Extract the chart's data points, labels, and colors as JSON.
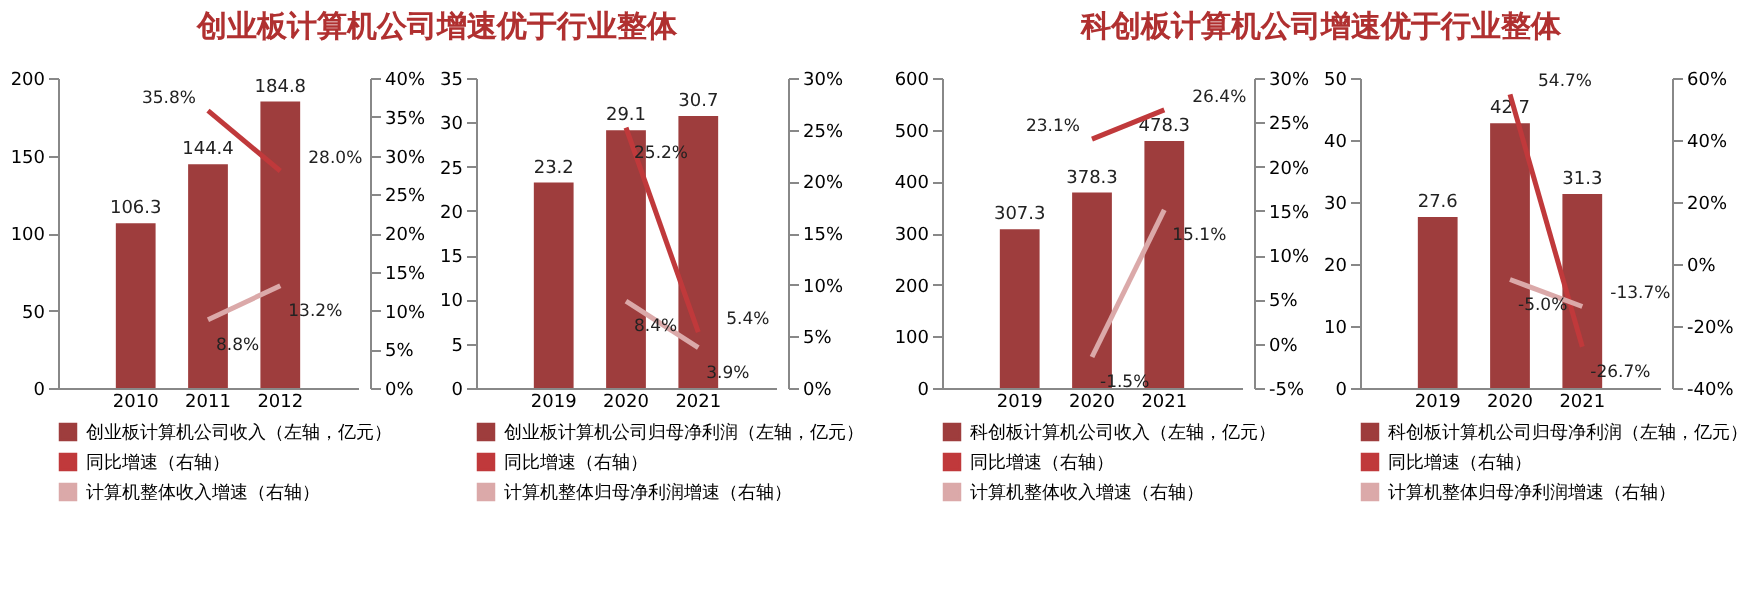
{
  "chart_data": [
    {
      "type": "bar",
      "title": "创业板计算机公司增速优于行业整体",
      "categories": [
        "2010",
        "2011",
        "2012"
      ],
      "ylim": [
        0,
        200
      ],
      "yticks": [
        0,
        50,
        100,
        150,
        200
      ],
      "y2lim": [
        0,
        40
      ],
      "y2ticks": [
        {
          "value": 0,
          "label": "0%"
        },
        {
          "value": 5,
          "label": "5%"
        },
        {
          "value": 10,
          "label": "10%"
        },
        {
          "value": 15,
          "label": "15%"
        },
        {
          "value": 20,
          "label": "20%"
        },
        {
          "value": 25,
          "label": "25%"
        },
        {
          "value": 30,
          "label": "30%"
        },
        {
          "value": 35,
          "label": "35%"
        },
        {
          "value": 40,
          "label": "40%"
        }
      ],
      "legend": "bottom",
      "series": [
        {
          "name": "创业板计算机公司收入（左轴，亿元）",
          "color": "#9e3d3d",
          "values": [
            106.3,
            144.4,
            184.8
          ],
          "value_labels": [
            "106.3",
            "144.4",
            "184.8"
          ]
        },
        {
          "name": "同比增速（右轴）",
          "type": "line",
          "axis": "y2",
          "color": "#c0393b",
          "values": [
            null,
            35.8,
            28.0
          ],
          "value_labels": [
            null,
            "35.8%",
            "28.0%"
          ]
        },
        {
          "name": "计算机整体收入增速（右轴）",
          "type": "line",
          "axis": "y2",
          "color": "#dba9a9",
          "values": [
            null,
            8.8,
            13.2
          ],
          "value_labels": [
            null,
            "8.8%",
            "13.2%"
          ]
        }
      ]
    },
    {
      "type": "bar",
      "categories": [
        "2019",
        "2020",
        "2021"
      ],
      "ylim": [
        0,
        35
      ],
      "yticks": [
        0,
        5,
        10,
        15,
        20,
        25,
        30,
        35
      ],
      "y2lim": [
        0,
        30
      ],
      "y2ticks": [
        {
          "value": 0,
          "label": "0%"
        },
        {
          "value": 5,
          "label": "5%"
        },
        {
          "value": 10,
          "label": "10%"
        },
        {
          "value": 15,
          "label": "15%"
        },
        {
          "value": 20,
          "label": "20%"
        },
        {
          "value": 25,
          "label": "25%"
        },
        {
          "value": 30,
          "label": "30%"
        }
      ],
      "legend": "bottom",
      "series": [
        {
          "name": "创业板计算机公司归母净利润（左轴，亿元）",
          "color": "#9e3d3d",
          "values": [
            23.2,
            29.1,
            30.7
          ],
          "value_labels": [
            "23.2",
            "29.1",
            "30.7"
          ]
        },
        {
          "name": "同比增速（右轴）",
          "type": "line",
          "axis": "y2",
          "color": "#c0393b",
          "values": [
            null,
            25.2,
            5.4
          ],
          "value_labels": [
            null,
            "25.2%",
            "5.4%"
          ]
        },
        {
          "name": "计算机整体归母净利润增速（右轴）",
          "type": "line",
          "axis": "y2",
          "color": "#dba9a9",
          "values": [
            null,
            8.4,
            3.9
          ],
          "value_labels": [
            null,
            "8.4%",
            "3.9%"
          ]
        }
      ]
    },
    {
      "type": "bar",
      "title": "科创板计算机公司增速优于行业整体",
      "categories": [
        "2019",
        "2020",
        "2021"
      ],
      "ylim": [
        0,
        600
      ],
      "yticks": [
        0,
        100,
        200,
        300,
        400,
        500,
        600
      ],
      "y2lim": [
        -5,
        30
      ],
      "y2ticks": [
        {
          "value": -5,
          "label": "-5%"
        },
        {
          "value": 0,
          "label": "0%"
        },
        {
          "value": 5,
          "label": "5%"
        },
        {
          "value": 10,
          "label": "10%"
        },
        {
          "value": 15,
          "label": "15%"
        },
        {
          "value": 20,
          "label": "20%"
        },
        {
          "value": 25,
          "label": "25%"
        },
        {
          "value": 30,
          "label": "30%"
        }
      ],
      "legend": "bottom",
      "series": [
        {
          "name": "科创板计算机公司收入（左轴，亿元）",
          "color": "#9e3d3d",
          "values": [
            307.3,
            378.3,
            478.3
          ],
          "value_labels": [
            "307.3",
            "378.3",
            "478.3"
          ]
        },
        {
          "name": "同比增速（右轴）",
          "type": "line",
          "axis": "y2",
          "color": "#c0393b",
          "values": [
            null,
            23.1,
            26.4
          ],
          "value_labels": [
            null,
            "23.1%",
            "26.4%"
          ]
        },
        {
          "name": "计算机整体收入增速（右轴）",
          "type": "line",
          "axis": "y2",
          "color": "#dba9a9",
          "values": [
            null,
            -1.5,
            15.1
          ],
          "value_labels": [
            null,
            "-1.5%",
            "15.1%"
          ]
        }
      ]
    },
    {
      "type": "bar",
      "categories": [
        "2019",
        "2020",
        "2021"
      ],
      "ylim": [
        0,
        50
      ],
      "yticks": [
        0,
        10,
        20,
        30,
        40,
        50
      ],
      "y2lim": [
        -40,
        60
      ],
      "y2ticks": [
        {
          "value": -40,
          "label": "-40%"
        },
        {
          "value": -20,
          "label": "-20%"
        },
        {
          "value": 0,
          "label": "0%"
        },
        {
          "value": 20,
          "label": "20%"
        },
        {
          "value": 40,
          "label": "40%"
        },
        {
          "value": 60,
          "label": "60%"
        }
      ],
      "legend": "bottom",
      "series": [
        {
          "name": "科创板计算机公司归母净利润（左轴，亿元）",
          "color": "#9e3d3d",
          "values": [
            27.6,
            42.7,
            31.3
          ],
          "value_labels": [
            "27.6",
            "42.7",
            "31.3"
          ]
        },
        {
          "name": "同比增速（右轴）",
          "type": "line",
          "axis": "y2",
          "color": "#c0393b",
          "values": [
            null,
            54.7,
            -26.7
          ],
          "value_labels": [
            null,
            "54.7%",
            "-26.7%"
          ]
        },
        {
          "name": "计算机整体归母净利润增速（右轴）",
          "type": "line",
          "axis": "y2",
          "color": "#dba9a9",
          "values": [
            null,
            -5.0,
            -13.7
          ],
          "value_labels": [
            null,
            "-5.0%",
            "-13.7%"
          ]
        }
      ]
    }
  ]
}
